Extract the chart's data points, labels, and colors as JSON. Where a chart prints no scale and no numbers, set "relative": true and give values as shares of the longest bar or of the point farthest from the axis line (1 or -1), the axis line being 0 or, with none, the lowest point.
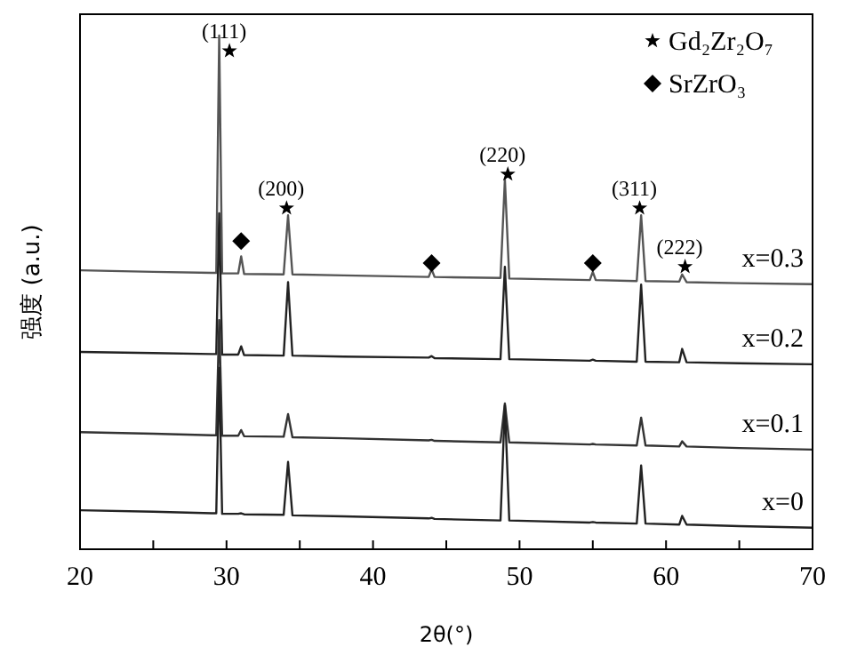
{
  "chart_data": {
    "type": "line",
    "relative": true,
    "xlabel": "2θ(°)",
    "ylabel": "强度 (a.u.)",
    "xlim": [
      20,
      70
    ],
    "xticks": [
      20,
      {
        "value": 25,
        "label": null
      },
      30,
      {
        "value": 35,
        "label": null
      },
      40,
      {
        "value": 45,
        "label": null
      },
      50,
      {
        "value": 55,
        "label": null
      },
      60,
      {
        "value": 65,
        "label": null
      },
      70
    ],
    "legend": "top right",
    "series": [
      {
        "name": "x=0.3",
        "color": "#555555",
        "x": [
          20,
          25,
          29,
          29.3,
          29.5,
          29.7,
          30,
          30.8,
          31,
          31.2,
          33.9,
          34.2,
          34.5,
          38,
          43.8,
          44,
          44.2,
          48.7,
          49,
          49.3,
          54.8,
          55,
          55.2,
          58,
          58.3,
          58.6,
          60.9,
          61.1,
          61.4,
          65,
          70
        ],
        "values": [
          0.543,
          0.54,
          0.538,
          0.538,
          1.0,
          0.537,
          0.537,
          0.537,
          0.57,
          0.536,
          0.535,
          0.65,
          0.535,
          0.533,
          0.53,
          0.545,
          0.53,
          0.528,
          0.72,
          0.527,
          0.524,
          0.54,
          0.524,
          0.522,
          0.65,
          0.522,
          0.521,
          0.535,
          0.52,
          0.518,
          0.516
        ]
      },
      {
        "name": "x=0.2",
        "color": "#222222",
        "x": [
          20,
          25,
          29,
          29.3,
          29.5,
          29.7,
          30,
          30.8,
          31,
          31.2,
          33.9,
          34.2,
          34.5,
          38,
          43.8,
          44,
          44.2,
          48.7,
          49,
          49.3,
          54.8,
          55,
          55.2,
          58,
          58.3,
          58.6,
          60.9,
          61.1,
          61.4,
          65,
          70
        ],
        "values": [
          0.384,
          0.382,
          0.38,
          0.38,
          0.654,
          0.379,
          0.379,
          0.379,
          0.395,
          0.378,
          0.377,
          0.52,
          0.377,
          0.375,
          0.373,
          0.376,
          0.372,
          0.37,
          0.55,
          0.37,
          0.367,
          0.369,
          0.367,
          0.365,
          0.515,
          0.365,
          0.364,
          0.39,
          0.364,
          0.362,
          0.36
        ]
      },
      {
        "name": "x=0.1",
        "color": "#333333",
        "x": [
          20,
          25,
          29,
          29.3,
          29.5,
          29.7,
          30,
          30.8,
          31,
          31.2,
          33.9,
          34.2,
          34.5,
          38,
          43.8,
          44,
          44.2,
          48.7,
          49,
          49.3,
          54.8,
          55,
          55.2,
          58,
          58.3,
          58.6,
          60.9,
          61.1,
          61.4,
          65,
          70
        ],
        "values": [
          0.228,
          0.225,
          0.222,
          0.222,
          0.446,
          0.221,
          0.221,
          0.221,
          0.232,
          0.22,
          0.219,
          0.263,
          0.218,
          0.216,
          0.212,
          0.213,
          0.211,
          0.208,
          0.284,
          0.208,
          0.204,
          0.205,
          0.204,
          0.202,
          0.256,
          0.202,
          0.2,
          0.21,
          0.2,
          0.197,
          0.194
        ]
      },
      {
        "name": "x=0",
        "color": "#222222",
        "x": [
          20,
          25,
          29,
          29.3,
          29.5,
          29.7,
          30,
          30.8,
          31,
          31.2,
          33.9,
          34.2,
          34.5,
          38,
          43.8,
          44,
          44.2,
          48.7,
          49,
          49.3,
          54.8,
          55,
          55.2,
          58,
          58.3,
          58.6,
          60.9,
          61.1,
          61.4,
          65,
          70
        ],
        "values": [
          0.076,
          0.073,
          0.07,
          0.07,
          0.353,
          0.069,
          0.069,
          0.069,
          0.07,
          0.068,
          0.067,
          0.17,
          0.066,
          0.064,
          0.06,
          0.061,
          0.059,
          0.056,
          0.28,
          0.056,
          0.052,
          0.053,
          0.052,
          0.05,
          0.163,
          0.05,
          0.048,
          0.065,
          0.048,
          0.045,
          0.042
        ]
      },
      {
        "name": "Gd₂Zr₂O₇",
        "type": "scatter",
        "marker": "star",
        "color": "#000000",
        "x": [
          30.2,
          34.1,
          49.2,
          58.2,
          61.3
        ],
        "values": [
          0.97,
          0.664,
          0.73,
          0.664,
          0.55
        ]
      },
      {
        "name": "SrZrO₃",
        "type": "scatter",
        "marker": "diamond",
        "color": "#000000",
        "x": [
          31.0,
          44.0,
          55.0
        ],
        "values": [
          0.6,
          0.557,
          0.557
        ]
      }
    ],
    "annotations": [
      "(111)",
      "(200)",
      "(220)",
      "(311)",
      "(222)"
    ]
  }
}
